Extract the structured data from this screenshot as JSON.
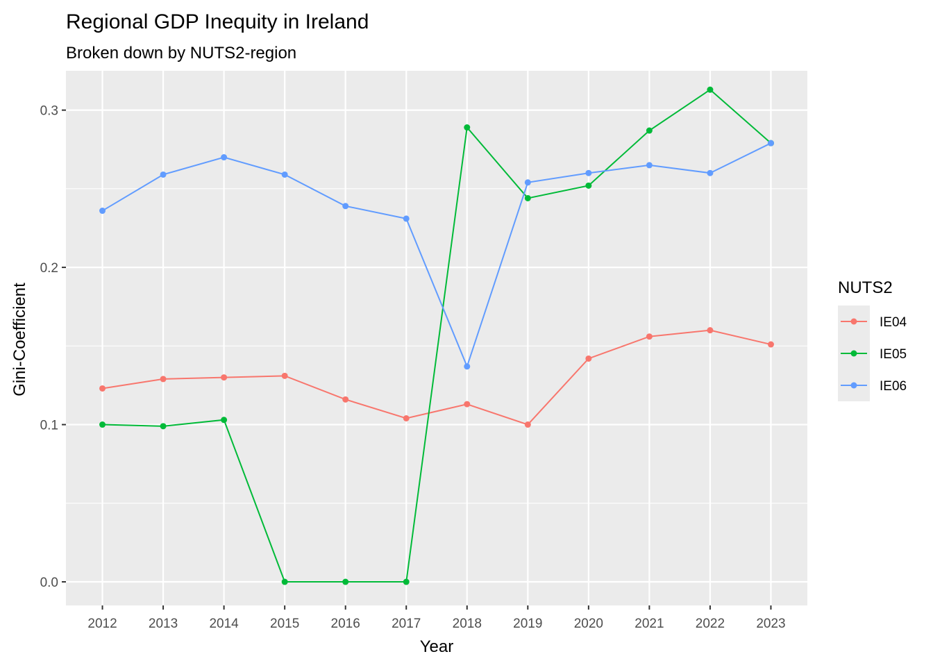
{
  "chart_data": {
    "type": "line",
    "title": "Regional GDP Inequity in Ireland",
    "subtitle": "Broken down by NUTS2-region",
    "xlabel": "Year",
    "ylabel": "Gini-Coefficient",
    "x": [
      2012,
      2013,
      2014,
      2015,
      2016,
      2017,
      2018,
      2019,
      2020,
      2021,
      2022,
      2023
    ],
    "xlim": [
      2011.4,
      2023.6
    ],
    "ylim": [
      -0.015,
      0.325
    ],
    "yticks": [
      0.0,
      0.1,
      0.2,
      0.3
    ],
    "ytick_labels": [
      "0.0",
      "0.1",
      "0.2",
      "0.3"
    ],
    "grid": true,
    "legend": {
      "title": "NUTS2",
      "position": "right"
    },
    "series": [
      {
        "name": "IE04",
        "color": "#F8766D",
        "values": [
          0.123,
          0.129,
          0.13,
          0.131,
          0.116,
          0.104,
          0.113,
          0.1,
          0.142,
          0.156,
          0.16,
          0.151
        ]
      },
      {
        "name": "IE05",
        "color": "#00BA38",
        "values": [
          0.1,
          0.099,
          0.103,
          0.0,
          0.0,
          0.0,
          0.289,
          0.244,
          0.252,
          0.287,
          0.313,
          0.279
        ]
      },
      {
        "name": "IE06",
        "color": "#619CFF",
        "values": [
          0.236,
          0.259,
          0.27,
          0.259,
          0.239,
          0.231,
          0.137,
          0.254,
          0.26,
          0.265,
          0.26,
          0.279
        ]
      }
    ]
  }
}
